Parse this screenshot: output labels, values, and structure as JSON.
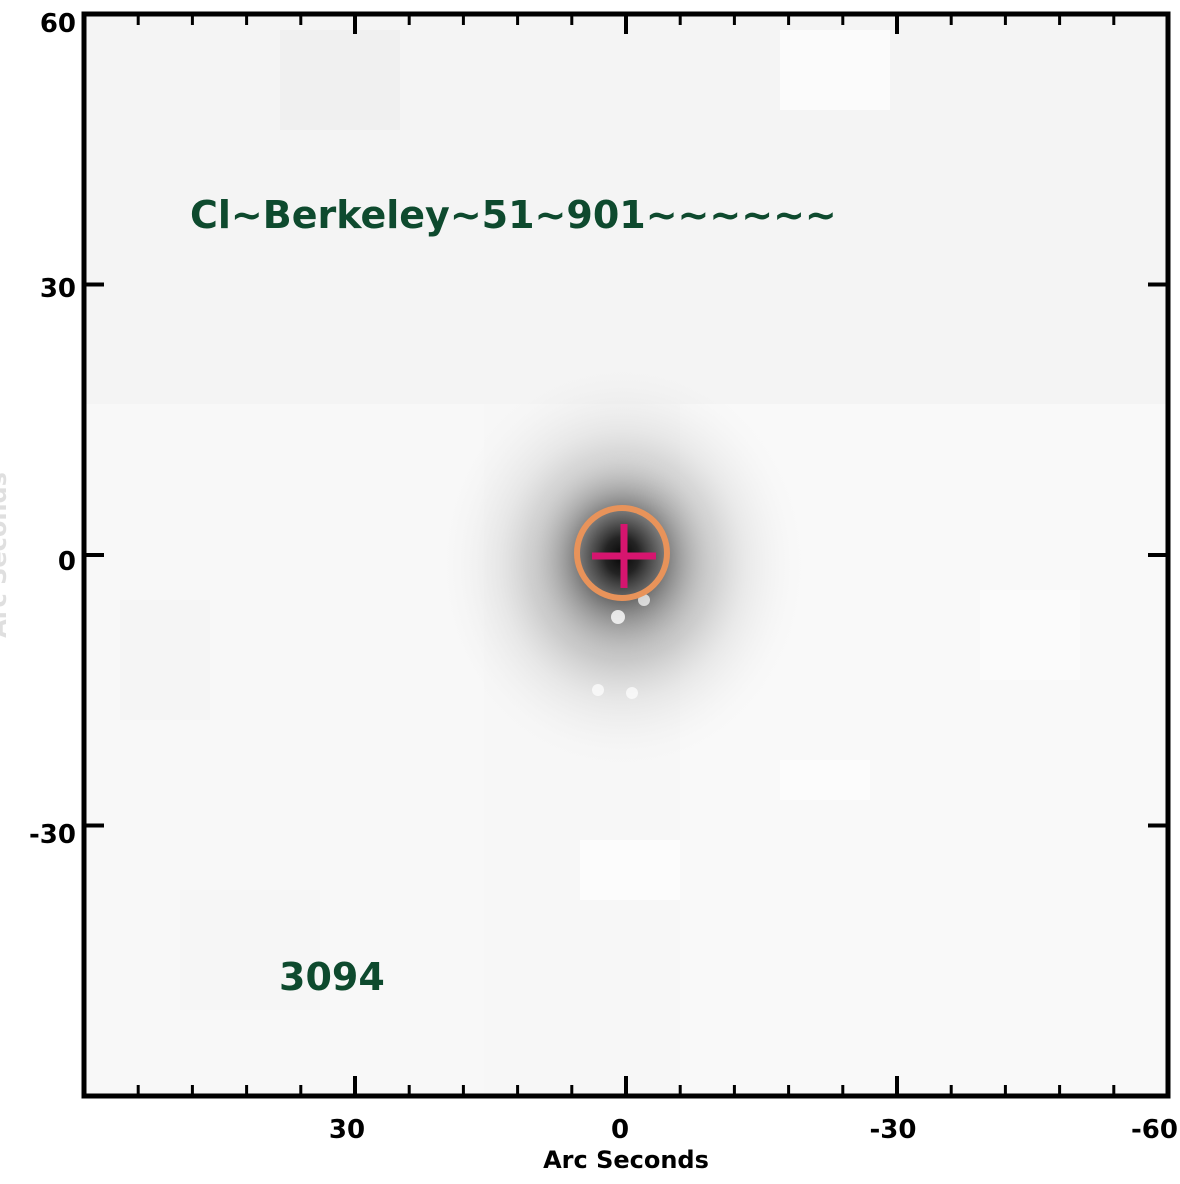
{
  "image": {
    "object_name": "Cl~Berkeley~51~901~~~~~~",
    "id_label": "3094",
    "annotation_color": "#0e4a2e",
    "aperture_color": "#e8935a",
    "marker_color": "#d6156f",
    "background_color": "#f7f7f7",
    "source_color": "#1a1a1a"
  },
  "axes": {
    "xlabel": "Arc Seconds",
    "ylabel": "Arc Seconds",
    "x_range": [
      60,
      -60
    ],
    "y_range": [
      -60,
      60
    ],
    "x_tick_labels": [
      "30",
      "0",
      "-30",
      "-60"
    ],
    "y_tick_labels": [
      "60",
      "30",
      "0",
      "-30"
    ]
  },
  "source": {
    "x": 0,
    "y": 0,
    "aperture_radius_arcsec": 5
  }
}
